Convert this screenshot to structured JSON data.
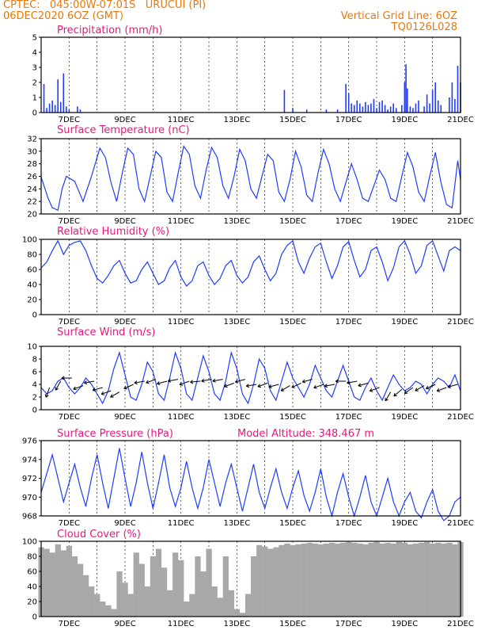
{
  "header": {
    "left1": "CPTEC:   045:00W-07:01S   URUCUI (PI)",
    "left2": "06DEC2020 6OZ (GMT)",
    "right1": "Vertical Grid Line: 6OZ",
    "right2": "TQ0126L028"
  },
  "model_altitude": "Model Altitude: 348.467 m",
  "x_ticks": [
    "7DEC",
    "9DEC",
    "11DEC",
    "13DEC",
    "15DEC",
    "17DEC",
    "19DEC",
    "21DEC"
  ],
  "colors": {
    "line": "#1f3cff",
    "cloud": "#a8a8a8",
    "title": "#e8187c",
    "header": "#e8780c"
  },
  "chart_data": [
    {
      "type": "bar",
      "title": "Precipitation (mm/h)",
      "ylim": [
        0,
        5
      ],
      "yticks": [
        "0",
        "1",
        "2",
        "3",
        "4",
        "5"
      ],
      "x": [
        6.1,
        6.2,
        6.3,
        6.4,
        6.5,
        6.6,
        6.7,
        6.8,
        6.9,
        7.0,
        7.3,
        7.4,
        14.7,
        15.0,
        15.5,
        16.2,
        16.6,
        16.9,
        17.0,
        17.1,
        17.2,
        17.3,
        17.4,
        17.5,
        17.6,
        17.7,
        17.8,
        17.9,
        18.0,
        18.1,
        18.2,
        18.3,
        18.4,
        18.5,
        18.6,
        18.7,
        18.9,
        19.0,
        19.05,
        19.1,
        19.2,
        19.3,
        19.4,
        19.5,
        19.7,
        19.8,
        19.9,
        20.0,
        20.1,
        20.2,
        20.3,
        20.6,
        20.7,
        20.8,
        20.9,
        21.0
      ],
      "values": [
        1.9,
        0.3,
        0.6,
        0.8,
        0.5,
        2.2,
        0.7,
        2.6,
        0.4,
        0.2,
        0.4,
        0.2,
        1.5,
        0.3,
        0.2,
        0.2,
        0.2,
        1.9,
        1.3,
        0.6,
        0.5,
        0.8,
        0.6,
        0.4,
        0.7,
        0.5,
        0.6,
        0.9,
        0.3,
        0.7,
        0.8,
        0.5,
        0.2,
        0.4,
        0.6,
        0.3,
        0.5,
        2.0,
        3.2,
        1.6,
        0.4,
        0.3,
        0.6,
        0.8,
        0.4,
        1.2,
        0.6,
        1.5,
        2.0,
        0.8,
        0.5,
        1.0,
        2.0,
        0.9,
        3.1,
        2.0
      ]
    },
    {
      "type": "line",
      "title": "Surface Temperature (nC)",
      "ylim": [
        20,
        32
      ],
      "yticks": [
        "20",
        "22",
        "24",
        "26",
        "28",
        "30",
        "32"
      ],
      "x": [
        6.0,
        6.25,
        6.4,
        6.6,
        6.75,
        6.9,
        7.2,
        7.5,
        7.8,
        8.1,
        8.3,
        8.5,
        8.7,
        8.9,
        9.1,
        9.3,
        9.5,
        9.7,
        9.9,
        10.1,
        10.3,
        10.5,
        10.7,
        10.9,
        11.1,
        11.3,
        11.5,
        11.7,
        11.9,
        12.1,
        12.3,
        12.5,
        12.7,
        12.9,
        13.1,
        13.3,
        13.5,
        13.7,
        13.9,
        14.1,
        14.3,
        14.5,
        14.7,
        14.9,
        15.1,
        15.3,
        15.5,
        15.7,
        15.9,
        16.1,
        16.3,
        16.5,
        16.7,
        16.9,
        17.1,
        17.3,
        17.5,
        17.7,
        17.9,
        18.1,
        18.3,
        18.5,
        18.7,
        18.9,
        19.1,
        19.3,
        19.5,
        19.7,
        19.9,
        20.1,
        20.3,
        20.5,
        20.7,
        20.9,
        21.0
      ],
      "series": [
        {
          "values": [
            25.9,
            22.5,
            21.0,
            20.6,
            24.0,
            26.0,
            25.2,
            22.0,
            26.0,
            30.5,
            29.0,
            25.0,
            22.0,
            26.5,
            30.5,
            29.5,
            24.0,
            22.0,
            26.0,
            30.0,
            29.0,
            23.5,
            22.0,
            26.5,
            30.8,
            29.5,
            24.5,
            22.5,
            27.0,
            30.6,
            29.0,
            24.5,
            22.5,
            26.0,
            30.3,
            28.5,
            24.0,
            22.5,
            26.0,
            29.5,
            28.5,
            23.5,
            22.0,
            25.5,
            30.0,
            27.5,
            23.0,
            22.0,
            26.5,
            30.3,
            28.0,
            24.0,
            22.0,
            25.0,
            28.0,
            25.5,
            22.5,
            22.0,
            24.5,
            27.0,
            25.5,
            22.5,
            22.0,
            26.0,
            29.8,
            27.5,
            23.5,
            22.0,
            26.0,
            29.8,
            25.0,
            21.5,
            21.0,
            28.5,
            25.5
          ]
        }
      ]
    },
    {
      "type": "line",
      "title": "Relative Humidity (%)",
      "ylim": [
        0,
        100
      ],
      "yticks": [
        "0",
        "20",
        "40",
        "60",
        "80",
        "100"
      ],
      "x": [
        6.0,
        6.2,
        6.4,
        6.6,
        6.8,
        7.0,
        7.2,
        7.4,
        7.6,
        7.8,
        8.0,
        8.2,
        8.4,
        8.6,
        8.8,
        9.0,
        9.2,
        9.4,
        9.6,
        9.8,
        10.0,
        10.2,
        10.4,
        10.6,
        10.8,
        11.0,
        11.2,
        11.4,
        11.6,
        11.8,
        12.0,
        12.2,
        12.4,
        12.6,
        12.8,
        13.0,
        13.2,
        13.4,
        13.6,
        13.8,
        14.0,
        14.2,
        14.4,
        14.6,
        14.8,
        15.0,
        15.2,
        15.4,
        15.6,
        15.8,
        16.0,
        16.2,
        16.4,
        16.6,
        16.8,
        17.0,
        17.2,
        17.4,
        17.6,
        17.8,
        18.0,
        18.2,
        18.4,
        18.6,
        18.8,
        19.0,
        19.2,
        19.4,
        19.6,
        19.8,
        20.0,
        20.2,
        20.4,
        20.6,
        20.8,
        21.0
      ],
      "series": [
        {
          "values": [
            62,
            70,
            85,
            98,
            80,
            92,
            96,
            98,
            85,
            65,
            48,
            42,
            52,
            65,
            72,
            55,
            42,
            45,
            60,
            70,
            55,
            40,
            45,
            62,
            72,
            50,
            38,
            45,
            65,
            70,
            52,
            40,
            48,
            65,
            72,
            52,
            42,
            50,
            70,
            78,
            60,
            45,
            55,
            80,
            92,
            98,
            70,
            55,
            75,
            90,
            95,
            70,
            48,
            65,
            90,
            97,
            72,
            50,
            60,
            85,
            90,
            70,
            45,
            62,
            90,
            98,
            80,
            55,
            65,
            92,
            98,
            78,
            58,
            85,
            90,
            85
          ]
        }
      ]
    },
    {
      "type": "line",
      "title": "Surface Wind (m/s)",
      "ylim": [
        0,
        10
      ],
      "yticks": [
        "0",
        "2",
        "4",
        "6",
        "8",
        "10"
      ],
      "x": [
        6.0,
        6.2,
        6.4,
        6.6,
        6.8,
        7.0,
        7.2,
        7.4,
        7.6,
        7.8,
        8.0,
        8.2,
        8.4,
        8.6,
        8.8,
        9.0,
        9.2,
        9.4,
        9.6,
        9.8,
        10.0,
        10.2,
        10.4,
        10.6,
        10.8,
        11.0,
        11.2,
        11.4,
        11.6,
        11.8,
        12.0,
        12.2,
        12.4,
        12.6,
        12.8,
        13.0,
        13.2,
        13.4,
        13.6,
        13.8,
        14.0,
        14.2,
        14.4,
        14.6,
        14.8,
        15.0,
        15.2,
        15.4,
        15.6,
        15.8,
        16.0,
        16.2,
        16.4,
        16.6,
        16.8,
        17.0,
        17.2,
        17.4,
        17.6,
        17.8,
        18.0,
        18.2,
        18.4,
        18.6,
        18.8,
        19.0,
        19.2,
        19.4,
        19.6,
        19.8,
        20.0,
        20.2,
        20.4,
        20.6,
        20.8,
        21.0
      ],
      "series": [
        {
          "values": [
            3.5,
            2.5,
            3.0,
            4.5,
            5.0,
            3.5,
            2.5,
            3.5,
            5.0,
            4.0,
            2.5,
            1.0,
            3.0,
            6.5,
            9.0,
            5.5,
            2.0,
            1.5,
            4.0,
            7.5,
            6.0,
            2.5,
            1.5,
            5.0,
            9.0,
            6.5,
            2.5,
            1.5,
            5.0,
            8.5,
            6.0,
            2.5,
            1.5,
            4.5,
            9.0,
            6.5,
            2.5,
            1.0,
            4.0,
            8.0,
            6.5,
            3.0,
            1.5,
            4.5,
            7.5,
            5.0,
            3.5,
            2.0,
            4.0,
            7.0,
            5.0,
            3.0,
            2.0,
            4.5,
            7.0,
            4.5,
            2.0,
            1.5,
            3.5,
            5.0,
            3.0,
            1.5,
            3.5,
            5.5,
            4.0,
            3.0,
            3.5,
            4.5,
            4.0,
            2.5,
            4.0,
            5.0,
            4.5,
            3.5,
            5.5,
            3.0
          ]
        }
      ],
      "arrows": {
        "x": [
          6.3,
          6.7,
          7.1,
          7.5,
          7.9,
          8.2,
          8.5,
          8.8,
          9.3,
          9.7,
          10.1,
          10.5,
          10.9,
          11.3,
          11.7,
          12.1,
          12.5,
          12.9,
          13.3,
          13.7,
          14.1,
          14.5,
          14.9,
          15.3,
          15.7,
          16.1,
          16.5,
          16.9,
          17.3,
          17.7,
          18.1,
          18.5,
          18.9,
          19.3,
          19.7,
          20.1,
          20.5,
          20.9
        ],
        "y": [
          3.5,
          4.5,
          5.0,
          3.8,
          4.5,
          3.5,
          3.0,
          2.8,
          4.0,
          4.5,
          4.8,
          4.5,
          4.8,
          4.5,
          4.5,
          4.8,
          4.8,
          4.2,
          4.8,
          4.0,
          4.2,
          4.0,
          3.8,
          4.2,
          4.8,
          4.0,
          4.0,
          4.5,
          4.5,
          4.2,
          3.5,
          2.8,
          3.2,
          3.5,
          3.8,
          4.0,
          3.5,
          4.0
        ],
        "angle": [
          250,
          240,
          180,
          200,
          190,
          195,
          200,
          210,
          205,
          190,
          200,
          195,
          190,
          200,
          185,
          190,
          190,
          200,
          195,
          190,
          200,
          195,
          210,
          205,
          195,
          200,
          190,
          180,
          190,
          195,
          200,
          240,
          220,
          215,
          210,
          205,
          200,
          195
        ]
      }
    },
    {
      "type": "line",
      "title": "Surface Pressure (hPa)",
      "ylim": [
        968,
        976
      ],
      "yticks": [
        "968",
        "970",
        "972",
        "974",
        "976"
      ],
      "x": [
        6.0,
        6.2,
        6.4,
        6.6,
        6.8,
        7.0,
        7.2,
        7.4,
        7.6,
        7.8,
        8.0,
        8.2,
        8.4,
        8.6,
        8.8,
        9.0,
        9.2,
        9.4,
        9.6,
        9.8,
        10.0,
        10.2,
        10.4,
        10.6,
        10.8,
        11.0,
        11.2,
        11.4,
        11.6,
        11.8,
        12.0,
        12.2,
        12.4,
        12.6,
        12.8,
        13.0,
        13.2,
        13.4,
        13.6,
        13.8,
        14.0,
        14.2,
        14.4,
        14.6,
        14.8,
        15.0,
        15.2,
        15.4,
        15.6,
        15.8,
        16.0,
        16.2,
        16.4,
        16.6,
        16.8,
        17.0,
        17.2,
        17.4,
        17.6,
        17.8,
        18.0,
        18.2,
        18.4,
        18.6,
        18.8,
        19.0,
        19.2,
        19.4,
        19.6,
        19.8,
        20.0,
        20.2,
        20.4,
        20.6,
        20.8,
        21.0
      ],
      "series": [
        {
          "values": [
            970.5,
            972.5,
            974.5,
            972.0,
            969.5,
            971.5,
            973.5,
            971.0,
            969.0,
            972.0,
            974.5,
            971.5,
            968.8,
            972.0,
            975.2,
            972.0,
            969.0,
            971.5,
            974.8,
            971.5,
            968.8,
            971.5,
            974.5,
            971.0,
            969.0,
            971.0,
            973.8,
            971.0,
            968.8,
            971.0,
            974.0,
            971.5,
            969.0,
            971.5,
            973.5,
            971.0,
            968.5,
            971.0,
            973.5,
            970.5,
            968.8,
            971.0,
            973.0,
            970.5,
            968.8,
            971.0,
            972.8,
            970.2,
            968.5,
            970.5,
            973.0,
            970.0,
            968.0,
            970.5,
            972.5,
            970.0,
            968.0,
            970.0,
            972.3,
            969.5,
            968.0,
            970.0,
            972.0,
            969.5,
            968.0,
            969.5,
            970.5,
            968.5,
            967.8,
            969.5,
            970.8,
            968.5,
            967.5,
            968.0,
            969.5,
            970.0
          ]
        }
      ]
    },
    {
      "type": "area",
      "title": "Cloud Cover (%)",
      "ylim": [
        0,
        100
      ],
      "yticks": [
        "0",
        "20",
        "40",
        "60",
        "80",
        "100"
      ],
      "x": [
        6.0,
        6.2,
        6.4,
        6.6,
        6.8,
        7.0,
        7.2,
        7.4,
        7.6,
        7.8,
        8.0,
        8.2,
        8.4,
        8.6,
        8.8,
        9.0,
        9.2,
        9.4,
        9.6,
        9.8,
        10.0,
        10.2,
        10.4,
        10.6,
        10.8,
        11.0,
        11.2,
        11.4,
        11.6,
        11.8,
        12.0,
        12.2,
        12.4,
        12.6,
        12.8,
        13.0,
        13.2,
        13.4,
        13.6,
        13.8,
        14.0,
        14.2,
        14.4,
        14.6,
        14.8,
        15.0,
        15.2,
        15.4,
        15.6,
        15.8,
        16.0,
        16.2,
        16.4,
        16.6,
        16.8,
        17.0,
        17.2,
        17.4,
        17.6,
        17.8,
        18.0,
        18.2,
        18.4,
        18.6,
        18.8,
        19.0,
        19.2,
        19.4,
        19.6,
        19.8,
        20.0,
        20.2,
        20.4,
        20.6,
        20.8,
        21.0
      ],
      "values": [
        92,
        90,
        85,
        96,
        88,
        94,
        80,
        70,
        55,
        40,
        30,
        20,
        15,
        10,
        60,
        45,
        30,
        85,
        70,
        40,
        80,
        90,
        65,
        35,
        85,
        75,
        20,
        30,
        80,
        60,
        90,
        40,
        25,
        80,
        35,
        10,
        5,
        30,
        80,
        95,
        93,
        90,
        92,
        95,
        97,
        95,
        96,
        97,
        98,
        97,
        96,
        97,
        98,
        97,
        98,
        99,
        98,
        97,
        96,
        98,
        99,
        97,
        98,
        97,
        99,
        98,
        96,
        97,
        98,
        99,
        97,
        98,
        97,
        98,
        96,
        99
      ]
    }
  ]
}
